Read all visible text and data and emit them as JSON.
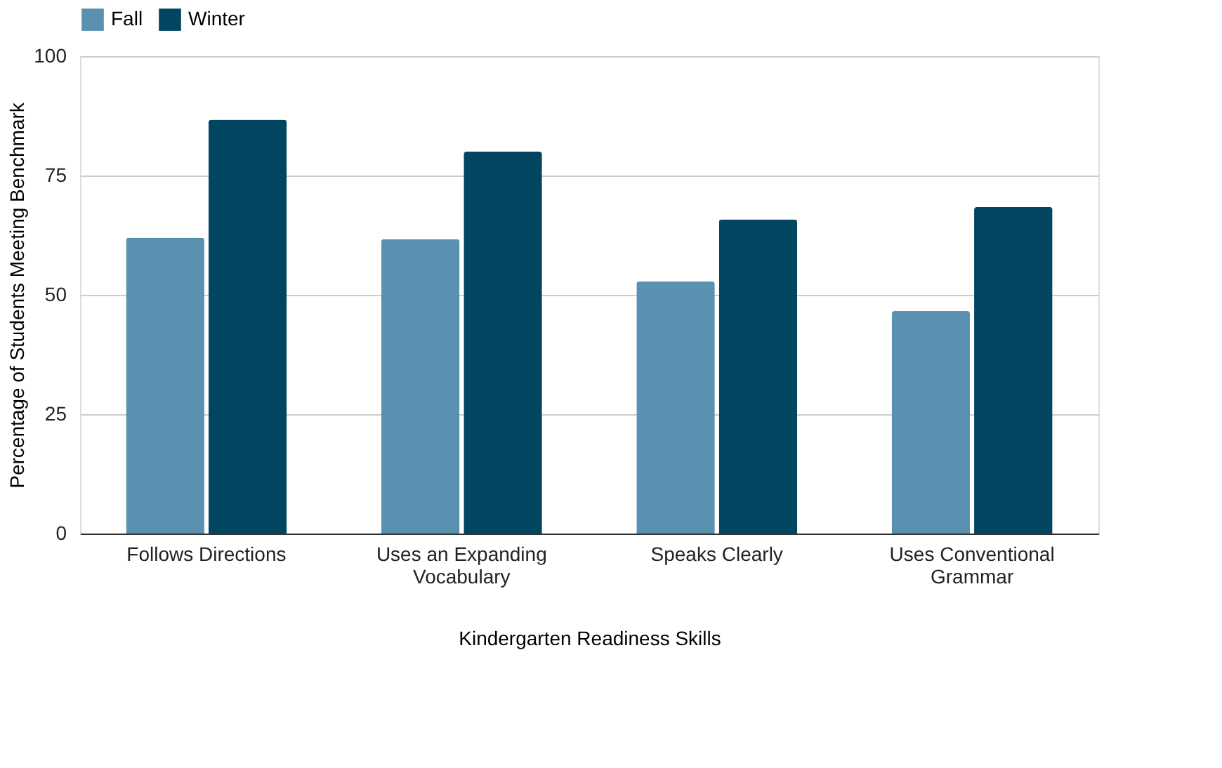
{
  "chart_data": {
    "type": "bar",
    "xlabel": "Kindergarten Readiness Skills",
    "ylabel": "Percentage of Students Meeting Benchmark",
    "categories": [
      "Follows Directions",
      "Uses an Expanding Vocabulary",
      "Speaks Clearly",
      "Uses Conventional Grammar"
    ],
    "series": [
      {
        "name": "Fall",
        "color": "#5a91b0",
        "values": [
          62,
          61.7,
          52.8,
          46.6
        ]
      },
      {
        "name": "Winter",
        "color": "#024560",
        "values": [
          86.7,
          80,
          65.8,
          68.4
        ]
      }
    ],
    "ylim": [
      0,
      100
    ],
    "yticks": [
      0,
      25,
      50,
      75,
      100
    ],
    "grid": "y",
    "legend": "top"
  }
}
